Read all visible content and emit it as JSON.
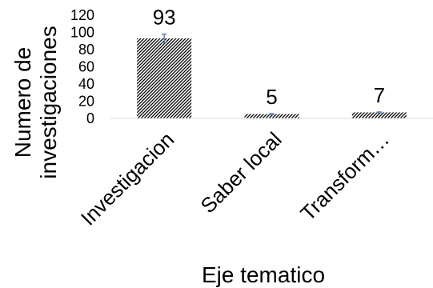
{
  "chart_data": {
    "type": "bar",
    "categories": [
      "Investigacion",
      "Saber local",
      "Transform…"
    ],
    "values": [
      93,
      5,
      7
    ],
    "data_labels": [
      "93",
      "5",
      "7"
    ],
    "error_bars": [
      5,
      0.5,
      0.5
    ],
    "ylabel_lines": [
      "Numero de",
      "investigaciones"
    ],
    "xlabel": "Eje tematico",
    "ylim": [
      0,
      120
    ],
    "yticks": [
      0,
      20,
      40,
      60,
      80,
      100,
      120
    ],
    "grid": false,
    "legend": "none",
    "bar_pattern": "diagonal-hatch",
    "colors": {
      "bar_fill": "#000000",
      "bar_background": "#ffffff",
      "error_bar": "#5b7fb5",
      "axis": "#d9d9d9"
    }
  }
}
